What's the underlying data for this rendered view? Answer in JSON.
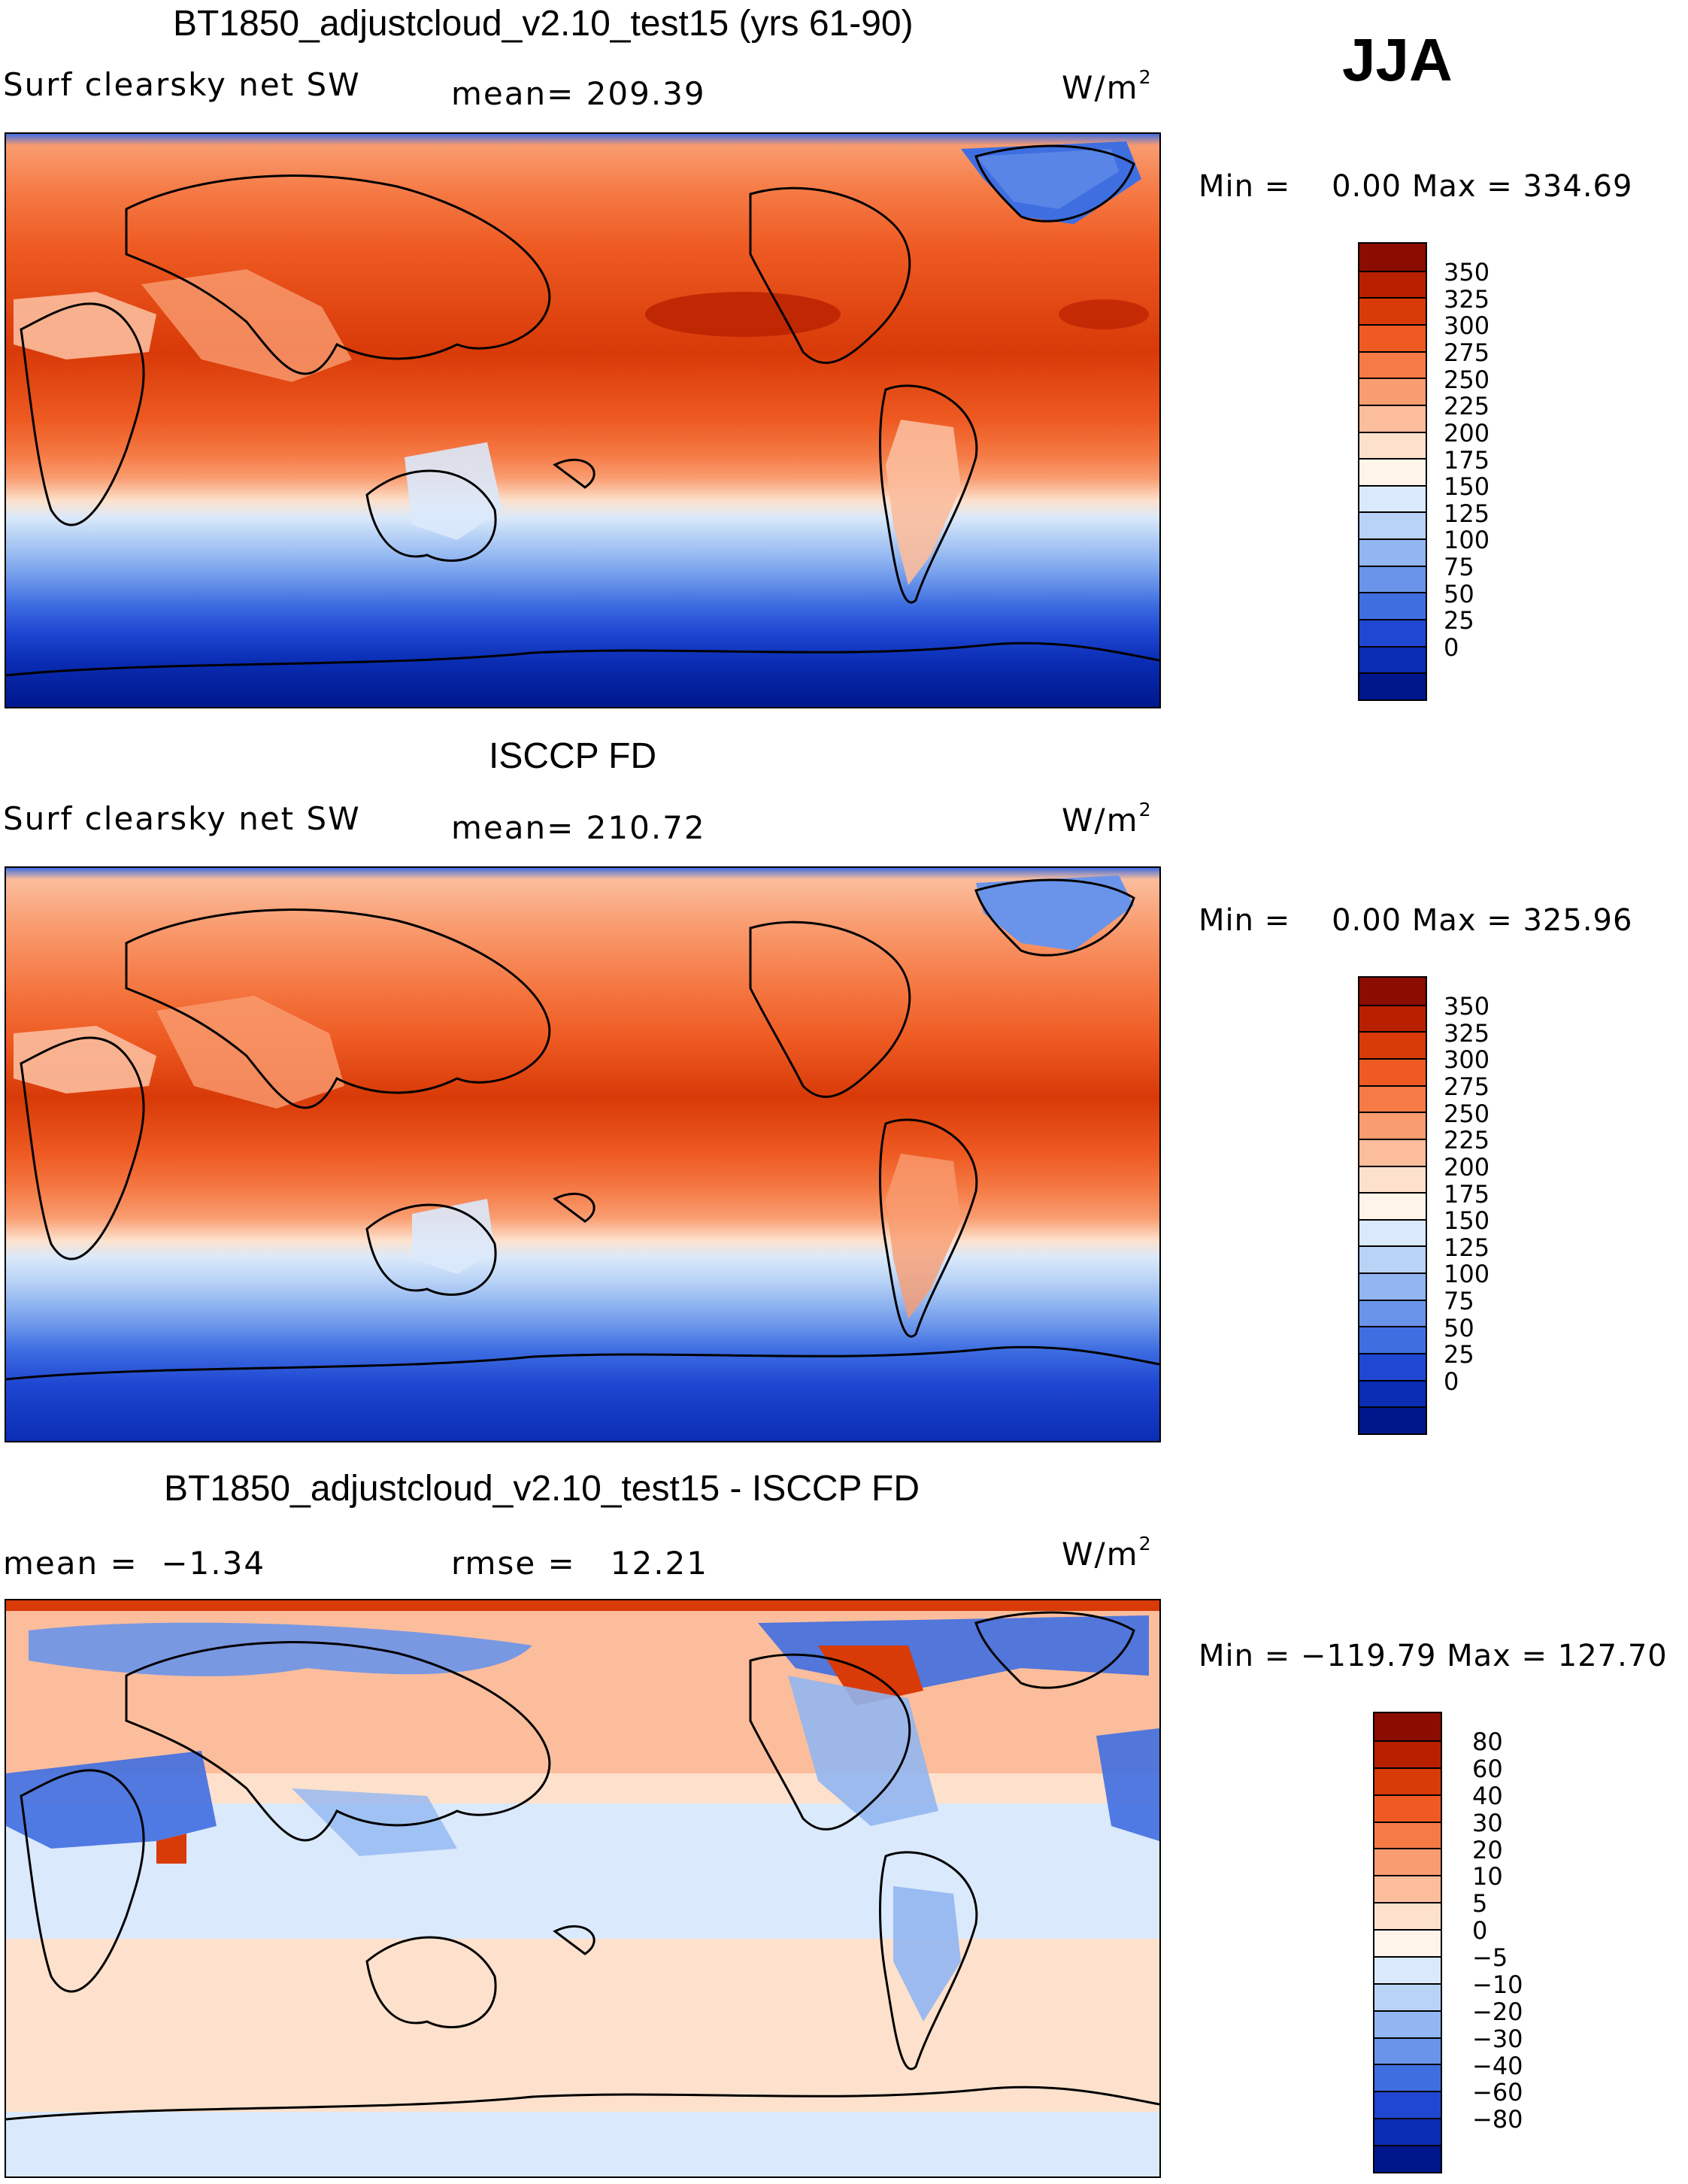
{
  "season": "JJA",
  "units_label": "W/m",
  "units_exp": "2",
  "panels": [
    {
      "title": "BT1850_adjustcloud_v2.10_test15 (yrs 61-90)",
      "left_label": "Surf clearsky net SW",
      "stat_label": "mean= 209.39",
      "minmax": "Min =    0.00 Max = 334.69",
      "colorbar_levels": [
        "350",
        "325",
        "300",
        "275",
        "250",
        "225",
        "200",
        "175",
        "150",
        "125",
        "100",
        "75",
        "50",
        "25",
        "0"
      ],
      "colorbar_colors": [
        "#8b0c00",
        "#b82000",
        "#d83a08",
        "#ee5a22",
        "#f57a45",
        "#f99c70",
        "#fbbd9c",
        "#fde1cc",
        "#fff4ea",
        "#dae9fb",
        "#b9d3f6",
        "#91b6f1",
        "#6a94ea",
        "#3f6ee1",
        "#1f47d2",
        "#0a2db4",
        "#00178c"
      ]
    },
    {
      "title": "ISCCP FD",
      "left_label": "Surf clearsky net SW",
      "stat_label": "mean= 210.72",
      "minmax": "Min =    0.00 Max = 325.96",
      "colorbar_levels": [
        "350",
        "325",
        "300",
        "275",
        "250",
        "225",
        "200",
        "175",
        "150",
        "125",
        "100",
        "75",
        "50",
        "25",
        "0"
      ],
      "colorbar_colors": [
        "#8b0c00",
        "#b82000",
        "#d83a08",
        "#ee5a22",
        "#f57a45",
        "#f99c70",
        "#fbbd9c",
        "#fde1cc",
        "#fff4ea",
        "#dae9fb",
        "#b9d3f6",
        "#91b6f1",
        "#6a94ea",
        "#3f6ee1",
        "#1f47d2",
        "#0a2db4",
        "#00178c"
      ]
    },
    {
      "title": "BT1850_adjustcloud_v2.10_test15 - ISCCP FD",
      "left_label": "mean =  −1.34",
      "stat_label": "rmse =   12.21",
      "minmax": "Min = −119.79 Max = 127.70",
      "colorbar_levels": [
        "80",
        "60",
        "40",
        "30",
        "20",
        "10",
        "5",
        "0",
        "−5",
        "−10",
        "−20",
        "−30",
        "−40",
        "−60",
        "−80"
      ],
      "colorbar_colors": [
        "#8b0c00",
        "#b82000",
        "#d83a08",
        "#ee5a22",
        "#f57a45",
        "#f99c70",
        "#fbbd9c",
        "#fde1cc",
        "#fff4ea",
        "#dae9fb",
        "#b9d3f6",
        "#91b6f1",
        "#6a94ea",
        "#3f6ee1",
        "#1f47d2",
        "#0a2db4",
        "#00178c"
      ]
    }
  ]
}
